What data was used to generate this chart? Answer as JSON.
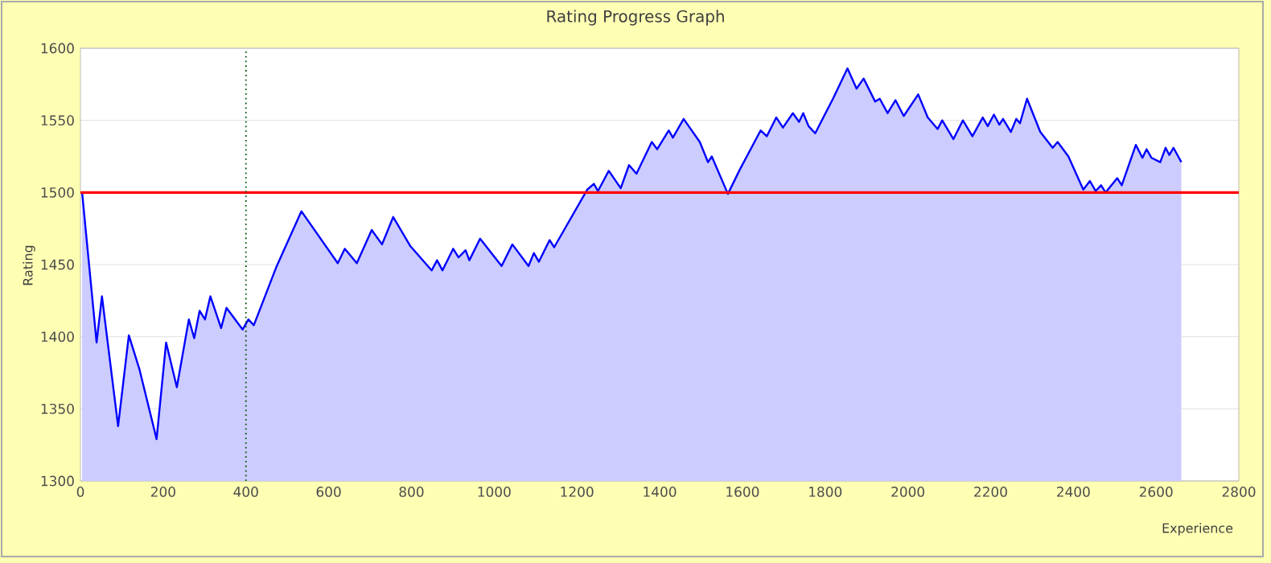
{
  "chart_data": {
    "type": "area",
    "title": "Rating Progress Graph",
    "xlabel": "Experience",
    "ylabel": "Rating",
    "xlim": [
      0,
      2800
    ],
    "ylim": [
      1300,
      1600
    ],
    "xticks": [
      0,
      200,
      400,
      600,
      800,
      1000,
      1200,
      1400,
      1600,
      1800,
      2000,
      2200,
      2400,
      2600,
      2800
    ],
    "yticks": [
      1300,
      1350,
      1400,
      1450,
      1500,
      1550,
      1600
    ],
    "grid": "y",
    "marker": "none",
    "line_style": "solid",
    "ref_lines": [
      {
        "axis": "y",
        "value": 1500,
        "color": "#ff0000",
        "line_style": "solid"
      },
      {
        "axis": "x",
        "value": 400,
        "color": "#005500",
        "line_style": "dotted"
      }
    ],
    "series": [
      {
        "color": "#0000ff",
        "x": [
          4,
          39,
          52,
          91,
          117,
          143,
          184,
          207,
          233,
          262,
          275,
          288,
          301,
          314,
          340,
          353,
          392,
          406,
          419,
          473,
          534,
          622,
          639,
          668,
          704,
          729,
          756,
          797,
          849,
          862,
          875,
          901,
          914,
          931,
          940,
          966,
          1018,
          1044,
          1083,
          1096,
          1108,
          1134,
          1145,
          1225,
          1241,
          1251,
          1277,
          1306,
          1326,
          1344,
          1381,
          1394,
          1422,
          1432,
          1458,
          1497,
          1517,
          1526,
          1565,
          1594,
          1644,
          1659,
          1682,
          1698,
          1722,
          1737,
          1747,
          1760,
          1776,
          1819,
          1854,
          1876,
          1893,
          1921,
          1932,
          1951,
          1970,
          1990,
          2025,
          2048,
          2072,
          2083,
          2110,
          2133,
          2156,
          2181,
          2193,
          2208,
          2221,
          2230,
          2249,
          2262,
          2271,
          2288,
          2320,
          2350,
          2362,
          2388,
          2424,
          2440,
          2454,
          2467,
          2478,
          2506,
          2517,
          2551,
          2567,
          2577,
          2589,
          2610,
          2623,
          2632,
          2642,
          2661
        ],
        "values": [
          1500,
          1396,
          1428,
          1338,
          1401,
          1377,
          1329,
          1396,
          1365,
          1412,
          1399,
          1418,
          1412,
          1428,
          1406,
          1420,
          1405,
          1412,
          1408,
          1448,
          1487,
          1451,
          1461,
          1451,
          1474,
          1464,
          1483,
          1463,
          1446,
          1453,
          1446,
          1461,
          1455,
          1460,
          1453,
          1468,
          1449,
          1464,
          1449,
          1458,
          1452,
          1467,
          1462,
          1502,
          1506,
          1501,
          1515,
          1503,
          1519,
          1513,
          1535,
          1530,
          1543,
          1538,
          1551,
          1535,
          1521,
          1525,
          1499,
          1516,
          1543,
          1539,
          1552,
          1545,
          1555,
          1549,
          1555,
          1546,
          1541,
          1565,
          1586,
          1572,
          1579,
          1563,
          1565,
          1555,
          1564,
          1553,
          1568,
          1552,
          1544,
          1550,
          1537,
          1550,
          1539,
          1552,
          1546,
          1554,
          1547,
          1551,
          1542,
          1551,
          1548,
          1565,
          1542,
          1531,
          1535,
          1525,
          1502,
          1508,
          1501,
          1505,
          1500,
          1510,
          1505,
          1533,
          1524,
          1530,
          1524,
          1521,
          1531,
          1526,
          1531,
          1521
        ]
      }
    ]
  }
}
